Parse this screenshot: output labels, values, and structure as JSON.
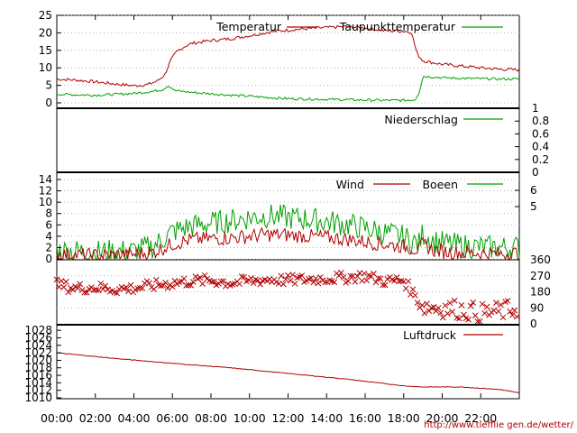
{
  "page": {
    "credit": "http://www.tiefflie gen.de/wetter/"
  },
  "chart_data": {
    "x_ticks": [
      "00:00",
      "02:00",
      "04:00",
      "06:00",
      "08:00",
      "10:00",
      "12:00",
      "14:00",
      "16:00",
      "18:00",
      "20:00",
      "22:00"
    ],
    "x_range_hours": [
      0,
      24
    ],
    "panels": [
      {
        "type": "line",
        "ylim": [
          0,
          25
        ],
        "yticks": [
          "0",
          "5",
          "10",
          "15",
          "20",
          "25"
        ],
        "grid": true,
        "legend_position": "top-right",
        "series": [
          {
            "name": "Temperatur",
            "color": "#b00000",
            "points": [
              [
                0,
                6.8
              ],
              [
                1,
                6.5
              ],
              [
                2,
                6.0
              ],
              [
                3,
                5.4
              ],
              [
                4,
                4.9
              ],
              [
                4.7,
                5.2
              ],
              [
                5.2,
                6.2
              ],
              [
                5.6,
                8
              ],
              [
                5.9,
                12
              ],
              [
                6.2,
                14.5
              ],
              [
                6.6,
                16
              ],
              [
                7,
                17
              ],
              [
                8,
                17.8
              ],
              [
                9,
                18.3
              ],
              [
                10,
                19.2
              ],
              [
                11,
                20.2
              ],
              [
                12,
                20.8
              ],
              [
                13,
                21.2
              ],
              [
                14,
                21.5
              ],
              [
                15,
                21.8
              ],
              [
                16,
                21.4
              ],
              [
                17,
                20.6
              ],
              [
                18,
                20.5
              ],
              [
                18.4,
                20.2
              ],
              [
                18.7,
                14
              ],
              [
                19,
                12
              ],
              [
                19.5,
                11.5
              ],
              [
                20,
                11
              ],
              [
                21,
                10.5
              ],
              [
                22,
                10
              ],
              [
                23,
                9.6
              ],
              [
                24,
                9.4
              ]
            ]
          },
          {
            "name": "Taupunkttemperatur",
            "color": "#00a000",
            "points": [
              [
                0,
                2.5
              ],
              [
                1,
                2.3
              ],
              [
                2,
                2.2
              ],
              [
                3,
                2.4
              ],
              [
                4,
                2.7
              ],
              [
                5,
                3.3
              ],
              [
                5.5,
                3.8
              ],
              [
                5.8,
                5.0
              ],
              [
                6.1,
                3.5
              ],
              [
                7,
                3.0
              ],
              [
                8,
                2.6
              ],
              [
                9,
                2.2
              ],
              [
                10,
                1.9
              ],
              [
                11,
                1.5
              ],
              [
                12,
                1.2
              ],
              [
                13,
                1.1
              ],
              [
                14,
                1.0
              ],
              [
                15,
                0.9
              ],
              [
                16,
                0.8
              ],
              [
                17,
                0.7
              ],
              [
                18,
                0.7
              ],
              [
                18.6,
                0.9
              ],
              [
                18.8,
                3
              ],
              [
                19,
                7.6
              ],
              [
                20,
                7.2
              ],
              [
                21,
                7.0
              ],
              [
                22,
                6.9
              ],
              [
                23,
                6.8
              ],
              [
                24,
                6.8
              ]
            ]
          }
        ]
      },
      {
        "type": "line",
        "ylim": [
          0,
          1
        ],
        "yticks_right": [
          "0",
          "0.2",
          "0.4",
          "0.6",
          "0.8",
          "1"
        ],
        "legend_position": "top-right",
        "series": [
          {
            "name": "Niederschlag",
            "color": "#00a000",
            "values_all": 0
          }
        ]
      },
      {
        "type": "line",
        "ylim": [
          0,
          14
        ],
        "yticks": [
          "0",
          "2",
          "4",
          "6",
          "8",
          "10",
          "12",
          "14"
        ],
        "yticks_right": [
          "5",
          "6"
        ],
        "grid": true,
        "legend_position": "top-right",
        "series": [
          {
            "name": "Wind",
            "color": "#b00000",
            "points": [
              [
                0,
                0.8
              ],
              [
                2,
                0.6
              ],
              [
                4,
                0.8
              ],
              [
                5,
                1.2
              ],
              [
                6,
                2.6
              ],
              [
                7,
                3.4
              ],
              [
                8,
                3.6
              ],
              [
                9,
                3.7
              ],
              [
                10,
                4.0
              ],
              [
                11,
                4.3
              ],
              [
                12,
                4.2
              ],
              [
                13,
                4.0
              ],
              [
                14,
                3.8
              ],
              [
                15,
                3.5
              ],
              [
                16,
                3.0
              ],
              [
                17,
                2.6
              ],
              [
                18,
                2.2
              ],
              [
                18.8,
                1.6
              ],
              [
                19,
                2.6
              ],
              [
                19.5,
                1.6
              ],
              [
                20,
                1.3
              ],
              [
                21,
                1.1
              ],
              [
                22,
                1.0
              ],
              [
                23,
                0.9
              ],
              [
                24,
                1.0
              ]
            ]
          },
          {
            "name": "Boeen",
            "color": "#00a000",
            "points": [
              [
                0,
                1.5
              ],
              [
                2,
                1.2
              ],
              [
                4,
                1.4
              ],
              [
                5,
                2.2
              ],
              [
                6,
                4.8
              ],
              [
                7,
                5.8
              ],
              [
                8,
                6.3
              ],
              [
                9,
                6.7
              ],
              [
                10,
                7.3
              ],
              [
                11,
                7.6
              ],
              [
                12,
                7.3
              ],
              [
                13,
                7.0
              ],
              [
                14,
                6.6
              ],
              [
                15,
                6.1
              ],
              [
                16,
                5.4
              ],
              [
                17,
                4.6
              ],
              [
                18,
                3.8
              ],
              [
                18.8,
                2.6
              ],
              [
                19,
                4.6
              ],
              [
                19.5,
                3.2
              ],
              [
                20,
                2.8
              ],
              [
                21,
                2.3
              ],
              [
                22,
                2.1
              ],
              [
                23,
                2.0
              ],
              [
                24,
                2.0
              ]
            ]
          }
        ]
      },
      {
        "type": "scatter",
        "ylim": [
          0,
          360
        ],
        "yticks_right": [
          "0",
          "90",
          "180",
          "270",
          "360"
        ],
        "grid": true,
        "series": [
          {
            "name": "",
            "color": "#b00000",
            "marker": "x",
            "points": [
              [
                0,
                220
              ],
              [
                1,
                200
              ],
              [
                2,
                205
              ],
              [
                3,
                195
              ],
              [
                4,
                200
              ],
              [
                5,
                215
              ],
              [
                6,
                230
              ],
              [
                7,
                240
              ],
              [
                8,
                245
              ],
              [
                9,
                230
              ],
              [
                10,
                240
              ],
              [
                11,
                250
              ],
              [
                12,
                245
              ],
              [
                13,
                250
              ],
              [
                14,
                255
              ],
              [
                15,
                260
              ],
              [
                16,
                270
              ],
              [
                17,
                240
              ],
              [
                18,
                245
              ],
              [
                19,
                100
              ],
              [
                20,
                90
              ],
              [
                21,
                80
              ],
              [
                22,
                60
              ],
              [
                23,
                70
              ],
              [
                24,
                90
              ]
            ]
          }
        ]
      },
      {
        "type": "line",
        "ylim": [
          1010,
          1029
        ],
        "yticks": [
          "1010",
          "1012",
          "1014",
          "1016",
          "1018",
          "1020",
          "1022",
          "1024",
          "1026",
          "1028"
        ],
        "legend_position": "top-right",
        "series": [
          {
            "name": "Luftdruck",
            "color": "#b00000",
            "points": [
              [
                0,
                1022
              ],
              [
                3,
                1020.5
              ],
              [
                6,
                1019.2
              ],
              [
                9,
                1018
              ],
              [
                12,
                1016.5
              ],
              [
                15,
                1015
              ],
              [
                18,
                1013.2
              ],
              [
                19,
                1012.9
              ],
              [
                21,
                1012.9
              ],
              [
                23,
                1012.2
              ],
              [
                24,
                1011.3
              ]
            ]
          }
        ]
      }
    ]
  }
}
